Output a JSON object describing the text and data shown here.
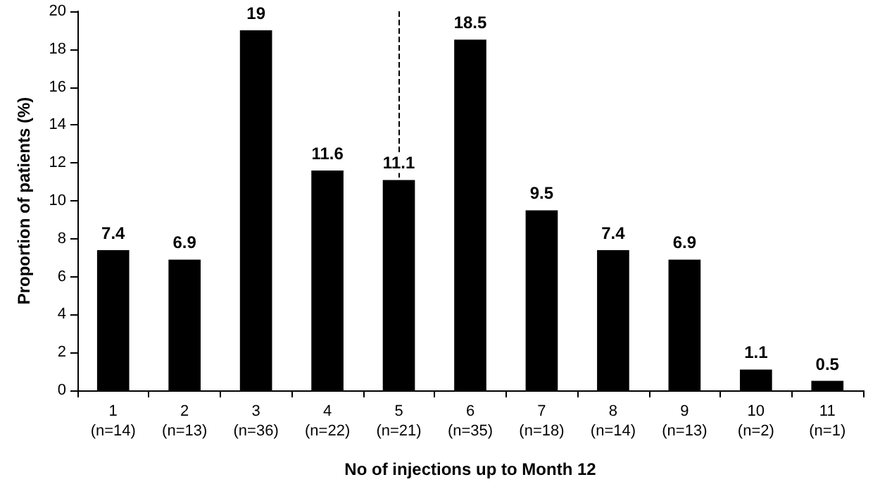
{
  "chart_data": {
    "type": "bar",
    "xlabel": "No of injections up to Month 12",
    "ylabel": "Proportion of patients (%)",
    "categories": [
      "1\n(n=14)",
      "2\n(n=13)",
      "3\n(n=36)",
      "4\n(n=22)",
      "5\n(n=21)",
      "6\n(n=35)",
      "7\n(n=18)",
      "8\n(n=14)",
      "9\n(n=13)",
      "10\n(n=2)",
      "11\n(n=1)"
    ],
    "values": [
      7.4,
      6.9,
      19,
      11.6,
      11.1,
      18.5,
      9.5,
      7.4,
      6.9,
      1.1,
      0.5
    ],
    "color": "#000000",
    "data_labels": true,
    "ylim": [
      0,
      20
    ],
    "yticks": [
      0,
      2,
      4,
      6,
      8,
      10,
      12,
      14,
      16,
      18,
      20
    ],
    "ref_lines": [
      {
        "axis": "x",
        "value": "5\n(n=21)",
        "line_style": "dashed",
        "color": "#000000"
      }
    ]
  }
}
